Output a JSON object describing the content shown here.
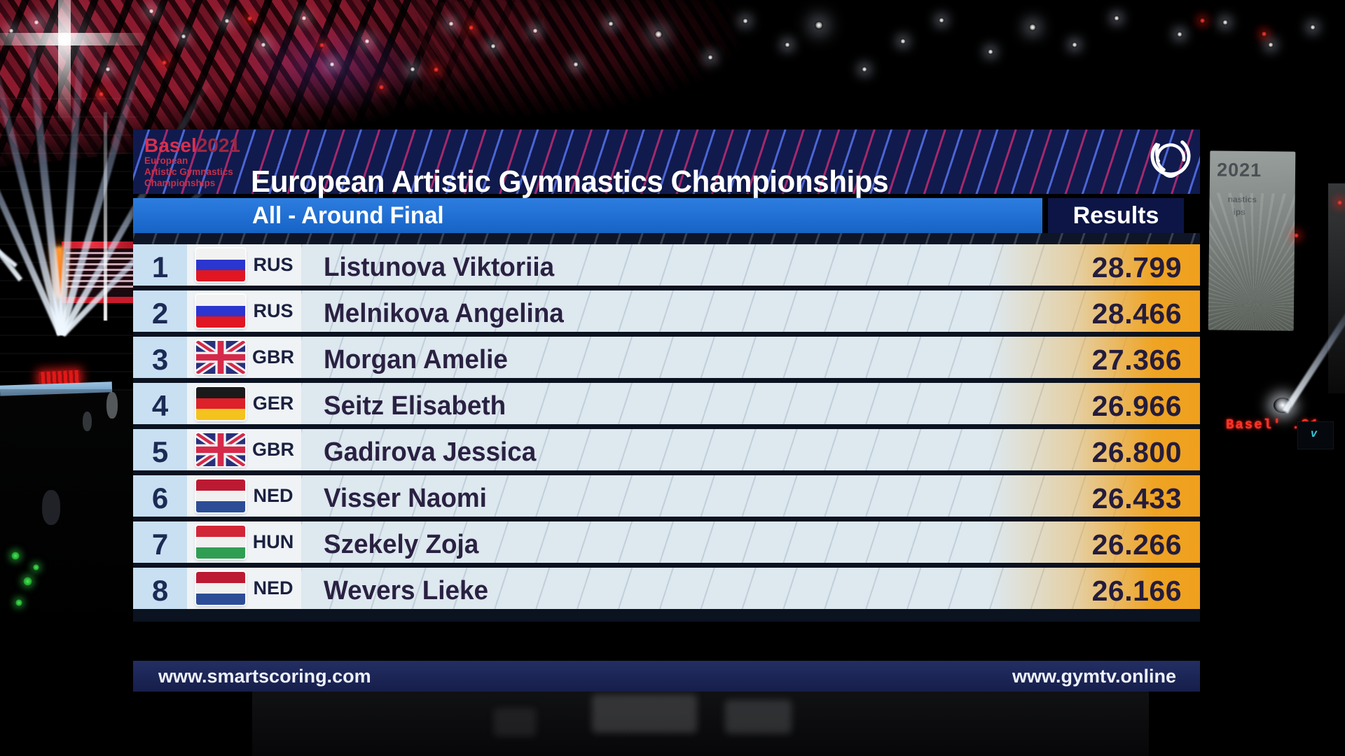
{
  "event": {
    "logo": {
      "brand": "Basel",
      "year": "2021",
      "sub1": "European",
      "sub2": "Artistic Gymnastics",
      "sub3": "Championships"
    },
    "title": "European Artistic Gymnastics Championships"
  },
  "subheader": {
    "phase": "All - Around Final",
    "results_label": "Results"
  },
  "table": {
    "rows": [
      {
        "rank": "1",
        "flag": "rus",
        "noc": "RUS",
        "name": "Listunova Viktoriia",
        "score": "28.799"
      },
      {
        "rank": "2",
        "flag": "rus",
        "noc": "RUS",
        "name": "Melnikova Angelina",
        "score": "28.466"
      },
      {
        "rank": "3",
        "flag": "gbr",
        "noc": "GBR",
        "name": "Morgan Amelie",
        "score": "27.366"
      },
      {
        "rank": "4",
        "flag": "ger",
        "noc": "GER",
        "name": "Seitz Elisabeth",
        "score": "26.966"
      },
      {
        "rank": "5",
        "flag": "gbr",
        "noc": "GBR",
        "name": "Gadirova Jessica",
        "score": "26.800"
      },
      {
        "rank": "6",
        "flag": "ned",
        "noc": "NED",
        "name": "Visser Naomi",
        "score": "26.433"
      },
      {
        "rank": "7",
        "flag": "hun",
        "noc": "HUN",
        "name": "Szekely Zoja",
        "score": "26.266"
      },
      {
        "rank": "8",
        "flag": "ned",
        "noc": "NED",
        "name": "Wevers Lieke",
        "score": "26.166"
      }
    ]
  },
  "footer": {
    "left": "www.smartscoring.com",
    "right": "www.gymtv.online"
  },
  "background": {
    "screen_year": "2021",
    "screen_line2": "nastics",
    "screen_line3": "ips",
    "led_sign": "Basel' .21"
  },
  "flags": {
    "rus": {
      "type": "stripes",
      "colors": [
        "#f2f2f2",
        "#2b35cf",
        "#e01622"
      ]
    },
    "ger": {
      "type": "stripes",
      "colors": [
        "#1a1a1a",
        "#dd2029",
        "#f4c31d"
      ]
    },
    "ned": {
      "type": "stripes",
      "colors": [
        "#bc1a33",
        "#f0f0f0",
        "#2c4d96"
      ]
    },
    "hun": {
      "type": "stripes",
      "colors": [
        "#d22637",
        "#f0f0f0",
        "#2f9e52"
      ]
    },
    "gbr": {
      "type": "unionjack",
      "colors": [
        "#28307c",
        "#f2f2f2",
        "#d5294a"
      ]
    }
  },
  "colors": {
    "header_navy": "#111a4d",
    "stripe_blue": "#5573eb",
    "stripe_crimson": "#c82d73",
    "bar_blue": "#1a6fd2",
    "results_navy": "#0c1545",
    "rank_cell_bg": "#c8e0f2",
    "flag_cell_bg": "#eff3f5",
    "name_cell_bg": "#dde8ef",
    "score_orange": "#efa01d",
    "row_separator": "#0b1220",
    "footer_navy": "#1d2756",
    "text_dark": "#241c3c",
    "brand_red": "#d8304e"
  }
}
